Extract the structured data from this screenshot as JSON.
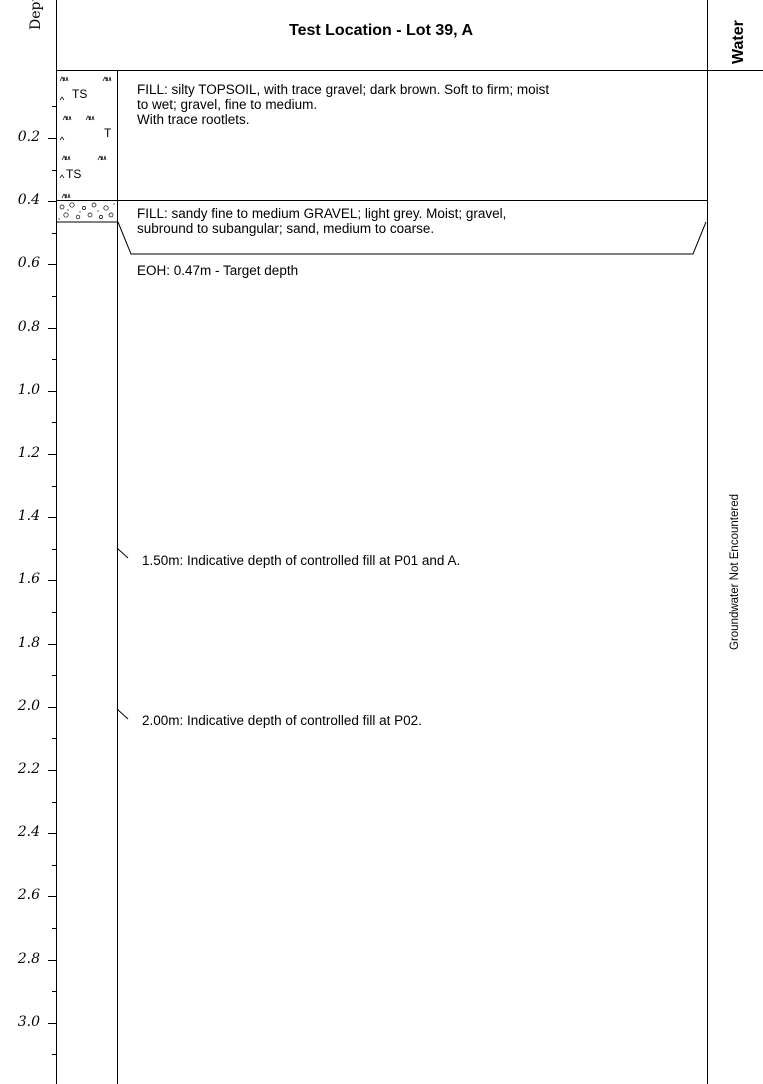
{
  "header": {
    "title": "Test Location - Lot 39, A",
    "depth_label": "Depth (m)",
    "water_label": "Water"
  },
  "depth_ticks": [
    "0.2",
    "0.4",
    "0.6",
    "0.8",
    "1.0",
    "1.2",
    "1.4",
    "1.6",
    "1.8",
    "2.0",
    "2.2",
    "2.4",
    "2.6",
    "2.8",
    "3.0"
  ],
  "graphic_log": {
    "topsoil_symbol_text": "TS",
    "topsoil_partial_text": "T"
  },
  "strata": [
    {
      "lines": [
        "FILL: silty TOPSOIL, with trace gravel; dark brown. Soft to firm; moist",
        "to wet; gravel, fine to medium.",
        "With trace  rootlets."
      ]
    },
    {
      "lines": [
        "FILL: sandy fine to medium GRAVEL; light grey. Moist; gravel,",
        "subround to subangular; sand, medium to coarse."
      ]
    }
  ],
  "end_of_hole": "EOH: 0.47m - Target depth",
  "notes": [
    "1.50m: Indicative depth of controlled fill at P01 and A.",
    "2.00m: Indicative depth of controlled fill at P02."
  ],
  "groundwater": "Groundwater Not Encountered"
}
